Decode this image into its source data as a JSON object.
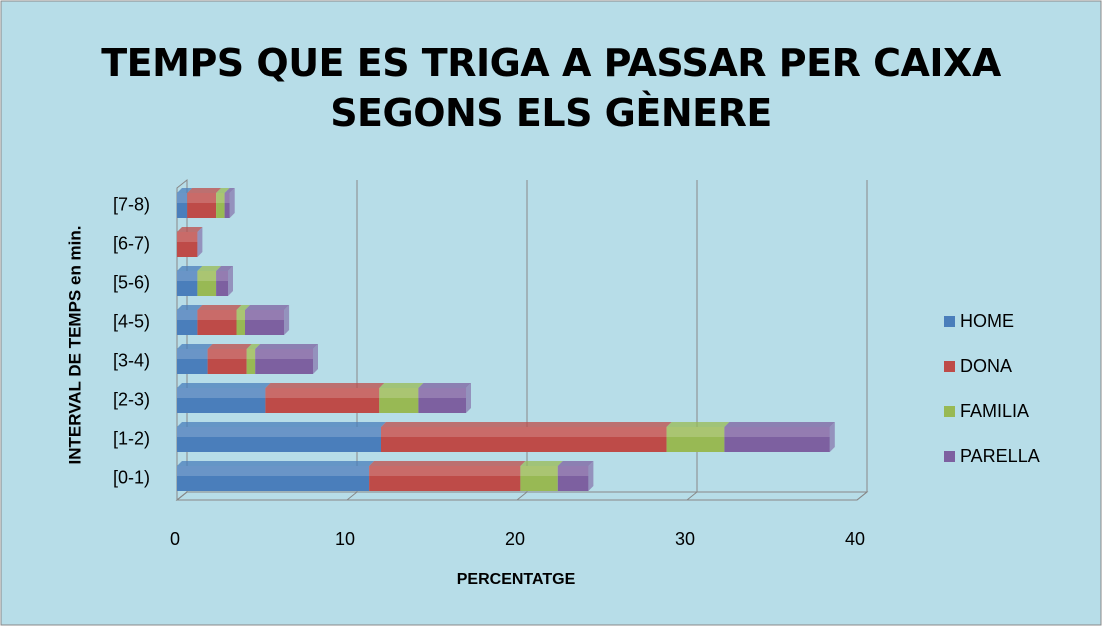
{
  "chart_data": {
    "type": "stacked-bar-horizontal",
    "title": "TEMPS QUE ES TRIGA A PASSAR PER CAIXA SEGONS ELS GÈNERE",
    "x_label": "PERCENTATGE",
    "y_label": "INTERVAL DE TEMPS en min.",
    "categories": [
      "[0-1)",
      "[1-2)",
      "[2-3)",
      "[3-4)",
      "[4-5)",
      "[5-6)",
      "[6-7)",
      "[7-8)"
    ],
    "series": [
      {
        "name": "HOME",
        "color": "#4a7ebb",
        "values": [
          11.3,
          12.0,
          5.2,
          1.8,
          1.2,
          1.2,
          0,
          0.6
        ]
      },
      {
        "name": "DONA",
        "color": "#be4b48",
        "values": [
          8.9,
          16.8,
          6.7,
          2.3,
          2.3,
          0,
          1.2,
          1.7
        ]
      },
      {
        "name": "FAMILIA",
        "color": "#98b954",
        "values": [
          2.2,
          3.4,
          2.3,
          0.5,
          0.5,
          1.1,
          0,
          0.5
        ]
      },
      {
        "name": "PARELLA",
        "color": "#7d60a0",
        "values": [
          1.8,
          6.2,
          2.8,
          3.4,
          2.3,
          0.7,
          0,
          0.3
        ]
      }
    ],
    "xlim": [
      0,
      40
    ],
    "xticks": [
      0,
      10,
      20,
      30,
      40
    ],
    "grid": true,
    "legend": "right"
  }
}
